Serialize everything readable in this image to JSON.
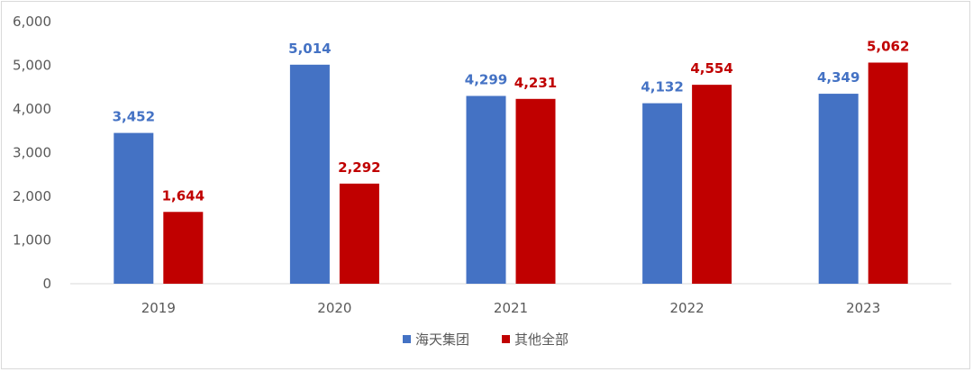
{
  "chart_data": {
    "type": "bar",
    "title": "",
    "xlabel": "",
    "ylabel": "",
    "categories": [
      "2019",
      "2020",
      "2021",
      "2022",
      "2023"
    ],
    "series": [
      {
        "name": "海天集团",
        "values": [
          3452,
          5014,
          4299,
          4132,
          4349
        ],
        "color": "#4472C4"
      },
      {
        "name": "其他全部",
        "values": [
          1644,
          2292,
          4231,
          4554,
          5062
        ],
        "color": "#C00000"
      }
    ],
    "ylim": [
      0,
      6000
    ],
    "yticks": [
      0,
      1000,
      2000,
      3000,
      4000,
      5000,
      6000
    ],
    "ytick_labels": [
      "0",
      "1,000",
      "2,000",
      "3,000",
      "4,000",
      "5,000",
      "6,000"
    ],
    "data_labels": [
      [
        "3,452",
        "5,014",
        "4,299",
        "4,132",
        "4,349"
      ],
      [
        "1,644",
        "2,292",
        "4,231",
        "4,554",
        "5,062"
      ]
    ],
    "grid": false,
    "legend_position": "bottom"
  }
}
